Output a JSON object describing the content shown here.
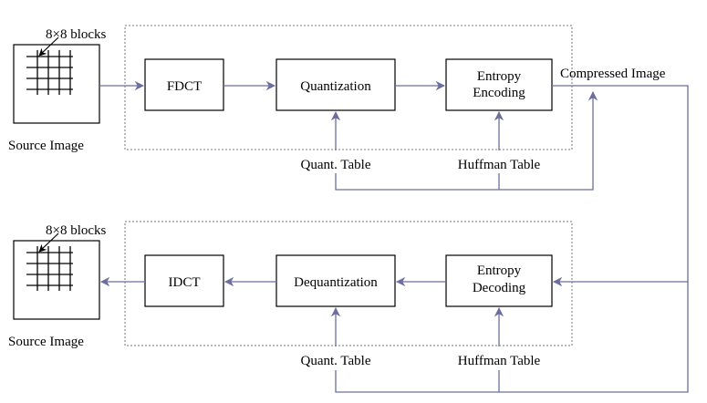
{
  "encoder": {
    "block_label": "8×8 blocks",
    "source_label": "Source Image",
    "fdct": "FDCT",
    "quantization": "Quantization",
    "entropy_line1": "Entropy",
    "entropy_line2": "Encoding",
    "quant_table": "Quant. Table",
    "huffman_table": "Huffman Table"
  },
  "output_label": "Compressed Image",
  "decoder": {
    "block_label": "8×8 blocks",
    "source_label": "Source Image",
    "idct": "IDCT",
    "dequantization": "Dequantization",
    "entropy_line1": "Entropy",
    "entropy_line2": "Decoding",
    "quant_table": "Quant. Table",
    "huffman_table": "Huffman Table"
  },
  "colors": {
    "flow": "#6b6e9e",
    "dashed_frame": "#777777"
  }
}
